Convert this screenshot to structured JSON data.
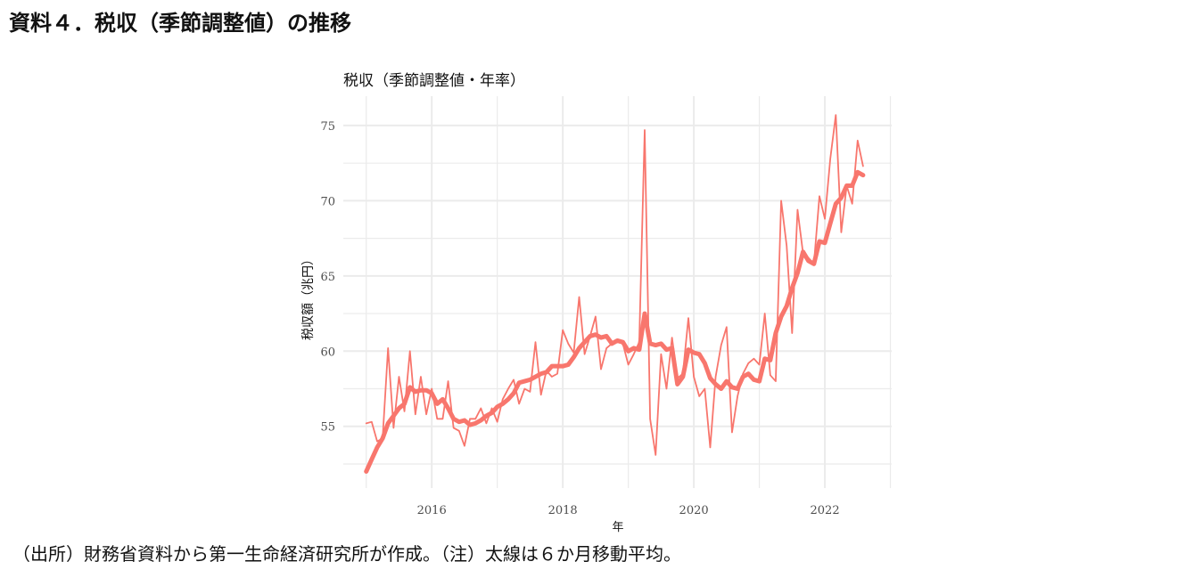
{
  "header": {
    "title": "資料４．税収（季節調整値）の推移"
  },
  "chart_data": {
    "type": "line",
    "title": "税収（季節調整値・年率）",
    "x_label": "年",
    "y_label": "税収額（兆円）",
    "xlim": [
      2014.65,
      2023.02
    ],
    "xticks": [
      2016,
      2018,
      2020,
      2022
    ],
    "minor_xticks": [
      2015,
      2017,
      2019,
      2021,
      2023
    ],
    "ylim": [
      50.9,
      76.95
    ],
    "yticks": [
      55,
      60,
      65,
      70,
      75
    ],
    "minor_yticks": [
      52.5,
      57.5,
      62.5,
      67.5,
      72.5
    ],
    "grid": true,
    "x": [
      2015,
      2015.083,
      2015.167,
      2015.25,
      2015.333,
      2015.417,
      2015.5,
      2015.583,
      2015.667,
      2015.75,
      2015.833,
      2015.917,
      2016,
      2016.083,
      2016.167,
      2016.25,
      2016.333,
      2016.417,
      2016.5,
      2016.583,
      2016.667,
      2016.75,
      2016.833,
      2016.917,
      2017,
      2017.083,
      2017.167,
      2017.25,
      2017.333,
      2017.417,
      2017.5,
      2017.583,
      2017.667,
      2017.75,
      2017.833,
      2017.917,
      2018,
      2018.083,
      2018.167,
      2018.25,
      2018.333,
      2018.417,
      2018.5,
      2018.583,
      2018.667,
      2018.75,
      2018.833,
      2018.917,
      2019,
      2019.083,
      2019.167,
      2019.25,
      2019.333,
      2019.417,
      2019.5,
      2019.583,
      2019.667,
      2019.75,
      2019.833,
      2019.917,
      2020,
      2020.083,
      2020.167,
      2020.25,
      2020.333,
      2020.417,
      2020.5,
      2020.583,
      2020.667,
      2020.75,
      2020.833,
      2020.917,
      2021,
      2021.083,
      2021.167,
      2021.25,
      2021.333,
      2021.417,
      2021.5,
      2021.583,
      2021.667,
      2021.75,
      2021.833,
      2021.917,
      2022,
      2022.083,
      2022.167,
      2022.25,
      2022.333,
      2022.417,
      2022.5,
      2022.583
    ],
    "series": [
      {
        "color": "#f8766d",
        "width": 1.8,
        "values": [
          55.2,
          55.3,
          54.0,
          54.2,
          60.2,
          54.9,
          58.3,
          56.0,
          60.0,
          55.8,
          58.3,
          55.8,
          57.5,
          55.5,
          55.5,
          58.0,
          54.9,
          54.7,
          53.7,
          55.5,
          55.5,
          56.2,
          55.2,
          56.2,
          55.3,
          56.8,
          57.5,
          58.1,
          56.5,
          57.5,
          57.3,
          60.6,
          57.1,
          58.7,
          58.3,
          58.5,
          61.4,
          60.5,
          59.9,
          63.6,
          59.8,
          61.0,
          62.3,
          58.8,
          60.2,
          60.5,
          60.6,
          60.5,
          59.1,
          59.8,
          60.6,
          74.7,
          55.5,
          53.1,
          59.8,
          57.5,
          60.9,
          58.2,
          58.5,
          62.2,
          58.3,
          57.0,
          57.5,
          53.6,
          58.3,
          60.4,
          61.6,
          54.6,
          57.0,
          58.5,
          59.2,
          59.5,
          59.1,
          62.5,
          58.4,
          58.0,
          70.0,
          67.0,
          61.2,
          69.4,
          66.5,
          66.2,
          65.8,
          70.3,
          68.8,
          72.8,
          75.7,
          67.9,
          71.0,
          69.8,
          74.0,
          72.3
        ]
      },
      {
        "color": "#f8766d",
        "width": 5,
        "values": [
          52.0,
          52.8,
          53.6,
          54.2,
          55.2,
          55.7,
          56.2,
          56.5,
          57.6,
          57.3,
          57.4,
          57.4,
          57.2,
          56.5,
          56.8,
          56.2,
          55.5,
          55.3,
          55.4,
          55.1,
          55.2,
          55.4,
          55.7,
          55.9,
          56.3,
          56.5,
          56.8,
          57.2,
          57.9,
          58.0,
          58.1,
          58.3,
          58.5,
          58.6,
          59.0,
          59.0,
          59.0,
          59.1,
          59.6,
          60.2,
          60.6,
          61.0,
          61.1,
          60.9,
          61.0,
          60.5,
          60.7,
          60.6,
          60.0,
          60.2,
          60.1,
          62.5,
          60.5,
          60.4,
          60.5,
          60.1,
          60.2,
          57.8,
          58.3,
          60.1,
          59.9,
          59.8,
          59.2,
          58.2,
          57.8,
          57.5,
          58.0,
          57.6,
          57.5,
          58.3,
          58.5,
          58.1,
          58.0,
          59.5,
          59.4,
          61.2,
          62.3,
          63.0,
          64.2,
          65.2,
          66.6,
          66.0,
          65.8,
          67.3,
          67.2,
          68.5,
          69.8,
          70.2,
          71.0,
          71.0,
          71.9,
          71.7
        ]
      }
    ]
  },
  "footer": {
    "note": "（出所）財務省資料から第一生命経済研究所が作成。（注）太線は６か月移動平均。"
  }
}
